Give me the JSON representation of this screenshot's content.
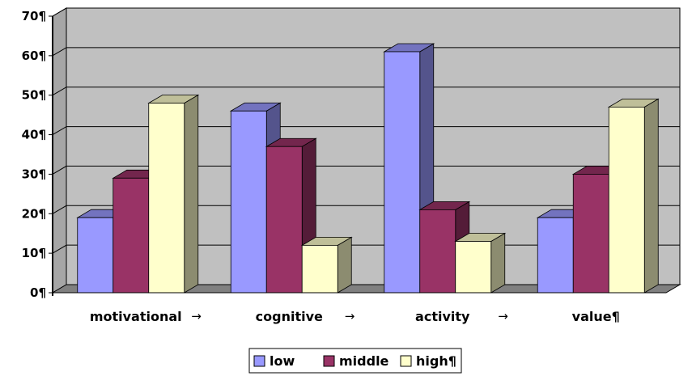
{
  "chart_data": {
    "type": "bar",
    "style": "3d-clustered-column",
    "title": "",
    "xlabel": "",
    "ylabel": "",
    "categories": [
      "motivational",
      "cognitive",
      "activity",
      "value¶"
    ],
    "separator": "→",
    "series": [
      {
        "name": "low",
        "values": [
          19,
          46,
          61,
          19
        ],
        "color": "#9999ff"
      },
      {
        "name": "middle",
        "values": [
          29,
          37,
          21,
          30
        ],
        "color": "#993366"
      },
      {
        "name": "high¶",
        "values": [
          48,
          12,
          13,
          47
        ],
        "color": "#ffffcc"
      }
    ],
    "ylim": [
      0,
      70
    ],
    "y_ticks": [
      "0¶",
      "10¶",
      "20¶",
      "30¶",
      "40¶",
      "50¶",
      "60¶",
      "70¶"
    ],
    "grid": true,
    "legend_position": "bottom",
    "colors": {
      "wall": "#c0c0c0",
      "floor": "#808080",
      "gridline": "#000000"
    }
  }
}
